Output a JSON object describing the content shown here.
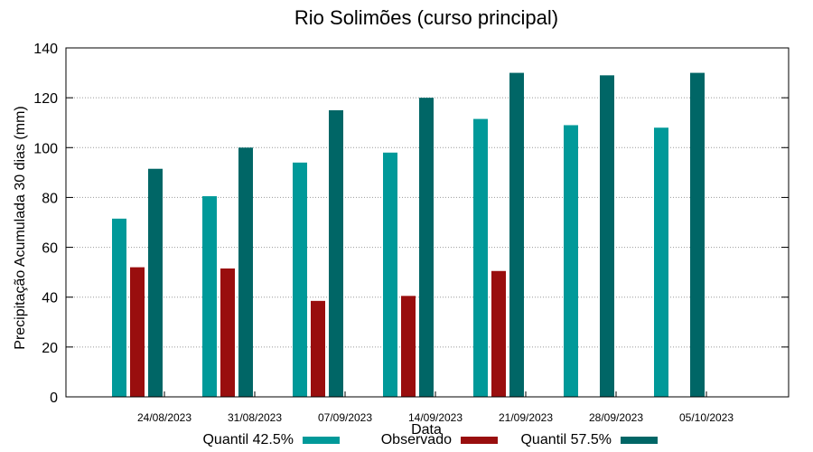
{
  "chart_data": {
    "type": "bar",
    "title": "Rio Solimões (curso principal)",
    "xlabel": "Data",
    "ylabel": "Precipitação Acumulada 30 dias (mm)",
    "ylim": [
      0,
      140
    ],
    "yticks": [
      0,
      20,
      40,
      60,
      80,
      100,
      120,
      140
    ],
    "grid": true,
    "legend_position": "bottom",
    "categories": [
      "24/08/2023",
      "31/08/2023",
      "07/09/2023",
      "14/09/2023",
      "21/09/2023",
      "28/09/2023",
      "05/10/2023"
    ],
    "series": [
      {
        "name": "Quantil 42.5%",
        "color": "#009999",
        "values": [
          71.5,
          80.5,
          94,
          98,
          111.5,
          109,
          108
        ]
      },
      {
        "name": "Observado",
        "color": "#990e0e",
        "values": [
          52,
          51.5,
          38.5,
          40.5,
          50.5,
          null,
          null
        ]
      },
      {
        "name": "Quantil 57.5%",
        "color": "#006666",
        "values": [
          91.5,
          100,
          115,
          120,
          130,
          129,
          130
        ]
      }
    ]
  }
}
